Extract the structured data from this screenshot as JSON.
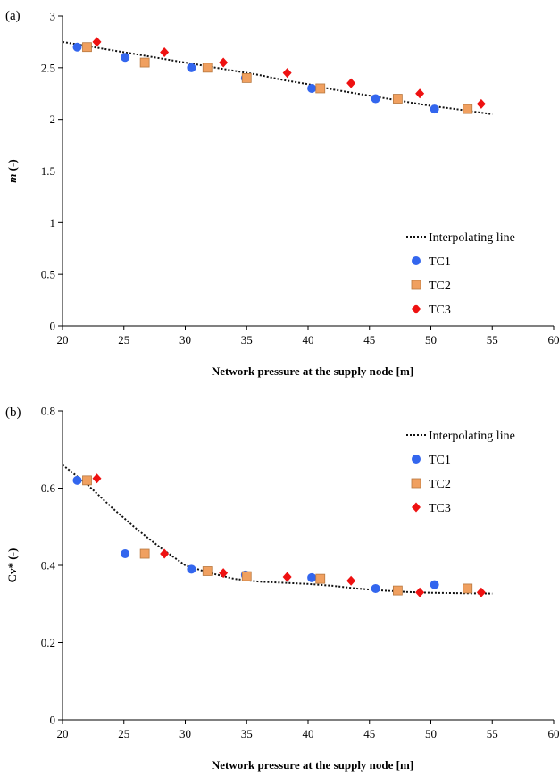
{
  "chart_data": [
    {
      "type": "scatter",
      "panel_label": "(a)",
      "ylabel_main": "m",
      "ylabel_suffix": " (-)",
      "xlabel": "Network pressure at the supply node [m]",
      "xlim": [
        20,
        60
      ],
      "ylim": [
        0,
        3
      ],
      "xticks": [
        "20",
        "25",
        "30",
        "35",
        "40",
        "45",
        "50",
        "55",
        "60"
      ],
      "yticks": [
        "0",
        "0.5",
        "1",
        "1.5",
        "2",
        "2.5",
        "3"
      ],
      "legend_position": "lower-right",
      "series": [
        {
          "name": "Interpolating line",
          "kind": "line",
          "color": "#111111",
          "x": [
            20,
            22,
            24,
            26,
            28,
            30,
            32,
            34,
            36,
            38,
            40,
            42,
            44,
            46,
            48,
            50,
            52,
            55
          ],
          "y": [
            2.75,
            2.71,
            2.67,
            2.63,
            2.59,
            2.55,
            2.51,
            2.47,
            2.43,
            2.38,
            2.34,
            2.29,
            2.25,
            2.21,
            2.17,
            2.13,
            2.1,
            2.05
          ]
        },
        {
          "name": "TC1",
          "kind": "circle",
          "color": "#3366ee",
          "x": [
            21.2,
            25.1,
            30.5,
            34.9,
            40.3,
            45.5,
            50.3
          ],
          "y": [
            2.7,
            2.6,
            2.5,
            2.4,
            2.3,
            2.2,
            2.1
          ]
        },
        {
          "name": "TC2",
          "kind": "square",
          "color": "#f0a060",
          "x": [
            22.0,
            26.7,
            31.8,
            35.0,
            41.0,
            47.3,
            53.0
          ],
          "y": [
            2.7,
            2.55,
            2.5,
            2.4,
            2.3,
            2.2,
            2.1
          ]
        },
        {
          "name": "TC3",
          "kind": "diamond",
          "color": "#ee1111",
          "x": [
            22.8,
            28.3,
            33.1,
            38.3,
            43.5,
            49.1,
            54.1
          ],
          "y": [
            2.75,
            2.65,
            2.55,
            2.45,
            2.35,
            2.25,
            2.15
          ]
        }
      ]
    },
    {
      "type": "scatter",
      "panel_label": "(b)",
      "ylabel_main": "Cv*",
      "ylabel_suffix": " (-)",
      "xlabel": "Network pressure at the supply node [m]",
      "xlim": [
        20,
        60
      ],
      "ylim": [
        0,
        0.8
      ],
      "xticks": [
        "20",
        "25",
        "30",
        "35",
        "40",
        "45",
        "50",
        "55",
        "60"
      ],
      "yticks": [
        "0",
        "0.2",
        "0.4",
        "0.6",
        "0.8"
      ],
      "legend_position": "top-right",
      "series": [
        {
          "name": "Interpolating line",
          "kind": "line",
          "color": "#111111",
          "x": [
            20,
            22,
            24,
            26,
            28,
            30,
            32,
            34,
            36,
            38,
            40,
            42,
            44,
            46,
            48,
            50,
            52,
            55
          ],
          "y": [
            0.66,
            0.61,
            0.55,
            0.495,
            0.445,
            0.4,
            0.38,
            0.365,
            0.358,
            0.355,
            0.352,
            0.347,
            0.34,
            0.335,
            0.331,
            0.329,
            0.328,
            0.327
          ]
        },
        {
          "name": "TC1",
          "kind": "circle",
          "color": "#3366ee",
          "x": [
            21.2,
            25.1,
            30.5,
            34.9,
            40.3,
            45.5,
            50.3
          ],
          "y": [
            0.62,
            0.43,
            0.39,
            0.375,
            0.368,
            0.34,
            0.35
          ]
        },
        {
          "name": "TC2",
          "kind": "square",
          "color": "#f0a060",
          "x": [
            22.0,
            26.7,
            31.8,
            35.0,
            41.0,
            47.3,
            53.0
          ],
          "y": [
            0.62,
            0.43,
            0.385,
            0.372,
            0.365,
            0.335,
            0.34
          ]
        },
        {
          "name": "TC3",
          "kind": "diamond",
          "color": "#ee1111",
          "x": [
            22.8,
            28.3,
            33.1,
            38.3,
            43.5,
            49.1,
            54.1
          ],
          "y": [
            0.625,
            0.43,
            0.38,
            0.37,
            0.36,
            0.33,
            0.33
          ]
        }
      ]
    }
  ]
}
